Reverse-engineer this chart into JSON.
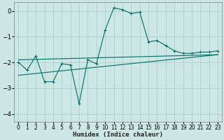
{
  "xlabel": "Humidex (Indice chaleur)",
  "background_color": "#cde8e4",
  "grid_color": "#aacfca",
  "line_color": "#006b6b",
  "xlim": [
    -0.5,
    23.5
  ],
  "ylim": [
    -4.3,
    0.35
  ],
  "yticks": [
    0,
    -1,
    -2,
    -3,
    -4
  ],
  "xticks": [
    0,
    1,
    2,
    3,
    4,
    5,
    6,
    7,
    8,
    9,
    10,
    11,
    12,
    13,
    14,
    15,
    16,
    17,
    18,
    19,
    20,
    21,
    22,
    23
  ],
  "series1_x": [
    0,
    1,
    2,
    3,
    4,
    5,
    6,
    7,
    8,
    9,
    10,
    11,
    12,
    13,
    14,
    15,
    16,
    17,
    18,
    19,
    20,
    21,
    22,
    23
  ],
  "series1_y": [
    -2.0,
    -2.3,
    -1.75,
    -2.75,
    -2.75,
    -2.05,
    -2.1,
    -3.6,
    -1.9,
    -2.05,
    -0.75,
    0.12,
    0.05,
    -0.1,
    -0.05,
    -1.2,
    -1.15,
    -1.35,
    -1.55,
    -1.65,
    -1.65,
    -1.6,
    -1.6,
    -1.55
  ],
  "series2_x": [
    0,
    23
  ],
  "series2_y": [
    -1.9,
    -1.7
  ],
  "series3_x": [
    0,
    23
  ],
  "series3_y": [
    -2.5,
    -1.7
  ]
}
